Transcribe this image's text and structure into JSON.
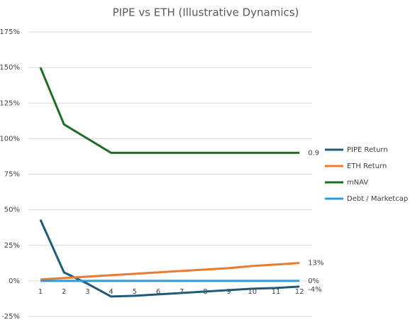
{
  "chart_data": {
    "type": "line",
    "title": "PIPE vs ETH (Illustrative Dynamics)",
    "categories": [
      "1",
      "2",
      "3",
      "4",
      "5",
      "6",
      "7",
      "8",
      "9",
      "10",
      "11",
      "12"
    ],
    "series": [
      {
        "name": "PIPE Return",
        "color": "#1f5a7a",
        "values": [
          43,
          6,
          -2,
          -11,
          -10.5,
          -9.5,
          -8.5,
          -7.5,
          -6.5,
          -5.5,
          -5,
          -4
        ],
        "value_labels": [
          null,
          null,
          null,
          null,
          null,
          null,
          null,
          null,
          null,
          null,
          null,
          "-4%"
        ]
      },
      {
        "name": "ETH Return",
        "color": "#e97c30",
        "values": [
          1,
          2,
          3,
          4,
          5,
          6,
          7,
          8,
          9,
          10.5,
          11.5,
          12.6
        ],
        "value_labels": [
          null,
          null,
          null,
          null,
          null,
          null,
          null,
          null,
          null,
          null,
          null,
          "13%"
        ]
      },
      {
        "name": "mNAV",
        "color": "#1e6e2a",
        "values": [
          150,
          110,
          100,
          90,
          90,
          90,
          90,
          90,
          90,
          90,
          90,
          90
        ],
        "value_labels": [
          null,
          null,
          null,
          null,
          null,
          null,
          null,
          null,
          null,
          null,
          null,
          "0.9"
        ]
      },
      {
        "name": "Debt / Marketcap",
        "color": "#2e9bd6",
        "values": [
          0,
          0,
          0,
          0,
          0,
          0,
          0,
          0,
          0,
          0,
          0,
          0
        ],
        "value_labels": [
          null,
          null,
          null,
          null,
          null,
          null,
          null,
          null,
          null,
          null,
          null,
          "0%"
        ]
      }
    ],
    "ylim": [
      -25,
      175
    ],
    "yticks": [
      {
        "value": -25,
        "label": "-25%"
      },
      {
        "value": 0,
        "label": "0%"
      },
      {
        "value": 25,
        "label": "25%"
      },
      {
        "value": 50,
        "label": "50%"
      },
      {
        "value": 75,
        "label": "75%"
      },
      {
        "value": 100,
        "label": "100%"
      },
      {
        "value": 125,
        "label": "125%"
      },
      {
        "value": 150,
        "label": "150%"
      },
      {
        "value": 175,
        "label": "175%"
      }
    ],
    "grid": true,
    "legend": "right"
  }
}
